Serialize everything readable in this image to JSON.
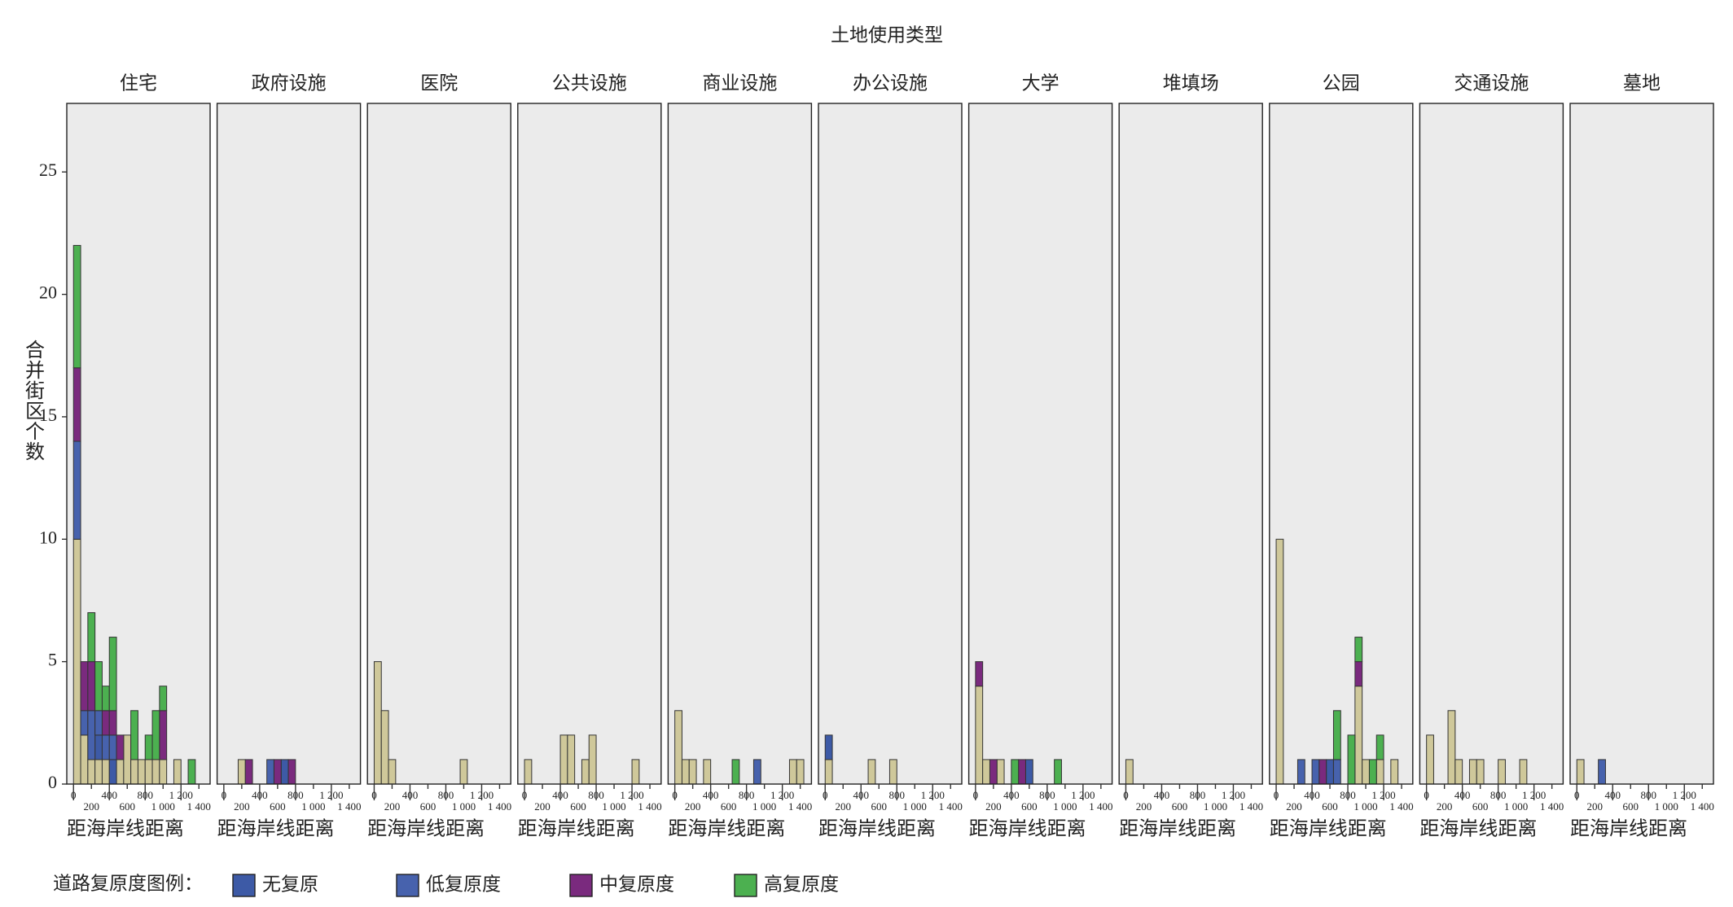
{
  "chart_data": {
    "type": "histogram",
    "title": "土地使用类型",
    "ylabel": "合并街区个数",
    "xlabel": "距海岸线距离",
    "legend_title": "道路复原度图例：",
    "bins": [
      0,
      80,
      160,
      240,
      320,
      400,
      480,
      560,
      640,
      720,
      800,
      880,
      960,
      1040,
      1120,
      1200,
      1280,
      1360,
      1440
    ],
    "xlim": [
      -75,
      1525
    ],
    "xticks": [
      0,
      200,
      400,
      600,
      800,
      {
        "value": 1000,
        "label": "1 000"
      },
      {
        "value": 1200,
        "label": "1 200"
      },
      {
        "value": 1400,
        "label": "1 400"
      }
    ],
    "ylim": [
      0,
      27.8
    ],
    "yticks": [
      0,
      5,
      10,
      15,
      20,
      25
    ],
    "panel_background": "#ebebeb",
    "series": [
      {
        "name": null,
        "color": "#cfc89a"
      },
      {
        "name": "无复原",
        "color": "#3d5aa6"
      },
      {
        "name": "低复原度",
        "color": "#4762ad"
      },
      {
        "name": "中复原度",
        "color": "#7a2a7e"
      },
      {
        "name": "高复原度",
        "color": "#4cb050"
      }
    ],
    "facets": [
      {
        "title": "住宅",
        "values": [
          [
            10,
            2,
            1,
            1,
            1,
            0,
            1,
            2,
            1,
            1,
            1,
            1,
            1,
            0,
            1,
            0,
            0,
            0
          ],
          [
            0,
            0,
            0,
            1,
            0,
            1,
            0,
            0,
            0,
            0,
            0,
            0,
            0,
            0,
            0,
            0,
            0,
            0
          ],
          [
            4,
            1,
            2,
            1,
            1,
            1,
            0,
            0,
            0,
            0,
            0,
            0,
            0,
            0,
            0,
            0,
            0,
            0
          ],
          [
            3,
            2,
            2,
            0,
            1,
            1,
            1,
            0,
            0,
            0,
            0,
            0,
            2,
            0,
            0,
            0,
            0,
            0
          ],
          [
            5,
            0,
            2,
            2,
            1,
            3,
            0,
            0,
            2,
            0,
            1,
            2,
            1,
            0,
            0,
            0,
            1,
            0
          ]
        ]
      },
      {
        "title": "政府设施",
        "values": [
          [
            0,
            0,
            1,
            0,
            0,
            0,
            0,
            0,
            0,
            0,
            0,
            0,
            0,
            0,
            0,
            0,
            0,
            0
          ],
          [
            0,
            0,
            0,
            0,
            0,
            0,
            0,
            0,
            1,
            0,
            0,
            0,
            0,
            0,
            0,
            0,
            0,
            0
          ],
          [
            0,
            0,
            0,
            0,
            0,
            0,
            1,
            0,
            0,
            0,
            0,
            0,
            0,
            0,
            0,
            0,
            0,
            0
          ],
          [
            0,
            0,
            0,
            1,
            0,
            0,
            0,
            1,
            0,
            1,
            0,
            0,
            0,
            0,
            0,
            0,
            0,
            0
          ],
          [
            0,
            0,
            0,
            0,
            0,
            0,
            0,
            0,
            0,
            0,
            0,
            0,
            0,
            0,
            0,
            0,
            0,
            0
          ]
        ]
      },
      {
        "title": "医院",
        "values": [
          [
            5,
            3,
            1,
            0,
            0,
            0,
            0,
            0,
            0,
            0,
            0,
            0,
            1,
            0,
            0,
            0,
            0,
            0
          ],
          [
            0,
            0,
            0,
            0,
            0,
            0,
            0,
            0,
            0,
            0,
            0,
            0,
            0,
            0,
            0,
            0,
            0,
            0
          ],
          [
            0,
            0,
            0,
            0,
            0,
            0,
            0,
            0,
            0,
            0,
            0,
            0,
            0,
            0,
            0,
            0,
            0,
            0
          ],
          [
            0,
            0,
            0,
            0,
            0,
            0,
            0,
            0,
            0,
            0,
            0,
            0,
            0,
            0,
            0,
            0,
            0,
            0
          ],
          [
            0,
            0,
            0,
            0,
            0,
            0,
            0,
            0,
            0,
            0,
            0,
            0,
            0,
            0,
            0,
            0,
            0,
            0
          ]
        ]
      },
      {
        "title": "公共设施",
        "values": [
          [
            1,
            0,
            0,
            0,
            0,
            2,
            2,
            0,
            1,
            2,
            0,
            0,
            0,
            0,
            0,
            1,
            0,
            0
          ],
          [
            0,
            0,
            0,
            0,
            0,
            0,
            0,
            0,
            0,
            0,
            0,
            0,
            0,
            0,
            0,
            0,
            0,
            0
          ],
          [
            0,
            0,
            0,
            0,
            0,
            0,
            0,
            0,
            0,
            0,
            0,
            0,
            0,
            0,
            0,
            0,
            0,
            0
          ],
          [
            0,
            0,
            0,
            0,
            0,
            0,
            0,
            0,
            0,
            0,
            0,
            0,
            0,
            0,
            0,
            0,
            0,
            0
          ],
          [
            0,
            0,
            0,
            0,
            0,
            0,
            0,
            0,
            0,
            0,
            0,
            0,
            0,
            0,
            0,
            0,
            0,
            0
          ]
        ]
      },
      {
        "title": "商业设施",
        "values": [
          [
            3,
            1,
            1,
            0,
            1,
            0,
            0,
            0,
            0,
            0,
            0,
            0,
            0,
            0,
            0,
            0,
            1,
            1
          ],
          [
            0,
            0,
            0,
            0,
            0,
            0,
            0,
            0,
            0,
            0,
            0,
            0,
            0,
            0,
            0,
            0,
            0,
            0
          ],
          [
            0,
            0,
            0,
            0,
            0,
            0,
            0,
            0,
            0,
            0,
            0,
            1,
            0,
            0,
            0,
            0,
            0,
            0
          ],
          [
            0,
            0,
            0,
            0,
            0,
            0,
            0,
            0,
            0,
            0,
            0,
            0,
            0,
            0,
            0,
            0,
            0,
            0
          ],
          [
            0,
            0,
            0,
            0,
            0,
            0,
            0,
            0,
            1,
            0,
            0,
            0,
            0,
            0,
            0,
            0,
            0,
            0
          ]
        ]
      },
      {
        "title": "办公设施",
        "values": [
          [
            1,
            0,
            0,
            0,
            0,
            0,
            1,
            0,
            0,
            1,
            0,
            0,
            0,
            0,
            0,
            0,
            0,
            0
          ],
          [
            1,
            0,
            0,
            0,
            0,
            0,
            0,
            0,
            0,
            0,
            0,
            0,
            0,
            0,
            0,
            0,
            0,
            0
          ],
          [
            0,
            0,
            0,
            0,
            0,
            0,
            0,
            0,
            0,
            0,
            0,
            0,
            0,
            0,
            0,
            0,
            0,
            0
          ],
          [
            0,
            0,
            0,
            0,
            0,
            0,
            0,
            0,
            0,
            0,
            0,
            0,
            0,
            0,
            0,
            0,
            0,
            0
          ],
          [
            0,
            0,
            0,
            0,
            0,
            0,
            0,
            0,
            0,
            0,
            0,
            0,
            0,
            0,
            0,
            0,
            0,
            0
          ]
        ]
      },
      {
        "title": "大学",
        "values": [
          [
            4,
            1,
            0,
            1,
            0,
            0,
            0,
            0,
            0,
            0,
            0,
            0,
            0,
            0,
            0,
            0,
            0,
            0
          ],
          [
            0,
            0,
            0,
            0,
            0,
            0,
            0,
            1,
            0,
            0,
            0,
            0,
            0,
            0,
            0,
            0,
            0,
            0
          ],
          [
            0,
            0,
            0,
            0,
            0,
            0,
            0,
            0,
            0,
            0,
            0,
            0,
            0,
            0,
            0,
            0,
            0,
            0
          ],
          [
            1,
            0,
            1,
            0,
            0,
            0,
            1,
            0,
            0,
            0,
            0,
            0,
            0,
            0,
            0,
            0,
            0,
            0
          ],
          [
            0,
            0,
            0,
            0,
            0,
            1,
            0,
            0,
            0,
            0,
            0,
            1,
            0,
            0,
            0,
            0,
            0,
            0
          ]
        ]
      },
      {
        "title": "堆填场",
        "values": [
          [
            1,
            0,
            0,
            0,
            0,
            0,
            0,
            0,
            0,
            0,
            0,
            0,
            0,
            0,
            0,
            0,
            0,
            0
          ],
          [
            0,
            0,
            0,
            0,
            0,
            0,
            0,
            0,
            0,
            0,
            0,
            0,
            0,
            0,
            0,
            0,
            0,
            0
          ],
          [
            0,
            0,
            0,
            0,
            0,
            0,
            0,
            0,
            0,
            0,
            0,
            0,
            0,
            0,
            0,
            0,
            0,
            0
          ],
          [
            0,
            0,
            0,
            0,
            0,
            0,
            0,
            0,
            0,
            0,
            0,
            0,
            0,
            0,
            0,
            0,
            0,
            0
          ],
          [
            0,
            0,
            0,
            0,
            0,
            0,
            0,
            0,
            0,
            0,
            0,
            0,
            0,
            0,
            0,
            0,
            0,
            0
          ]
        ]
      },
      {
        "title": "公园",
        "values": [
          [
            10,
            0,
            0,
            0,
            0,
            0,
            0,
            0,
            0,
            0,
            0,
            4,
            1,
            0,
            1,
            0,
            1,
            0
          ],
          [
            0,
            0,
            0,
            0,
            0,
            0,
            0,
            1,
            0,
            0,
            0,
            0,
            0,
            0,
            0,
            0,
            0,
            0
          ],
          [
            0,
            0,
            0,
            1,
            0,
            1,
            0,
            0,
            1,
            0,
            0,
            0,
            0,
            0,
            0,
            0,
            0,
            0
          ],
          [
            0,
            0,
            0,
            0,
            0,
            0,
            1,
            0,
            0,
            0,
            0,
            1,
            0,
            0,
            0,
            0,
            0,
            0
          ],
          [
            0,
            0,
            0,
            0,
            0,
            0,
            0,
            0,
            2,
            0,
            2,
            1,
            0,
            1,
            1,
            0,
            0,
            0
          ]
        ]
      },
      {
        "title": "交通设施",
        "values": [
          [
            2,
            0,
            0,
            3,
            1,
            0,
            1,
            1,
            0,
            0,
            1,
            0,
            0,
            1,
            0,
            0,
            0,
            0
          ],
          [
            0,
            0,
            0,
            0,
            0,
            0,
            0,
            0,
            0,
            0,
            0,
            0,
            0,
            0,
            0,
            0,
            0,
            0
          ],
          [
            0,
            0,
            0,
            0,
            0,
            0,
            0,
            0,
            0,
            0,
            0,
            0,
            0,
            0,
            0,
            0,
            0,
            0
          ],
          [
            0,
            0,
            0,
            0,
            0,
            0,
            0,
            0,
            0,
            0,
            0,
            0,
            0,
            0,
            0,
            0,
            0,
            0
          ],
          [
            0,
            0,
            0,
            0,
            0,
            0,
            0,
            0,
            0,
            0,
            0,
            0,
            0,
            0,
            0,
            0,
            0,
            0
          ]
        ]
      },
      {
        "title": "墓地",
        "values": [
          [
            1,
            0,
            0,
            0,
            0,
            0,
            0,
            0,
            0,
            0,
            0,
            0,
            0,
            0,
            0,
            0,
            0,
            0
          ],
          [
            0,
            0,
            0,
            0,
            0,
            0,
            0,
            0,
            0,
            0,
            0,
            0,
            0,
            0,
            0,
            0,
            0,
            0
          ],
          [
            0,
            0,
            0,
            1,
            0,
            0,
            0,
            0,
            0,
            0,
            0,
            0,
            0,
            0,
            0,
            0,
            0,
            0
          ],
          [
            0,
            0,
            0,
            0,
            0,
            0,
            0,
            0,
            0,
            0,
            0,
            0,
            0,
            0,
            0,
            0,
            0,
            0
          ],
          [
            0,
            0,
            0,
            0,
            0,
            0,
            0,
            0,
            0,
            0,
            0,
            0,
            0,
            0,
            0,
            0,
            0,
            0
          ]
        ]
      }
    ]
  }
}
